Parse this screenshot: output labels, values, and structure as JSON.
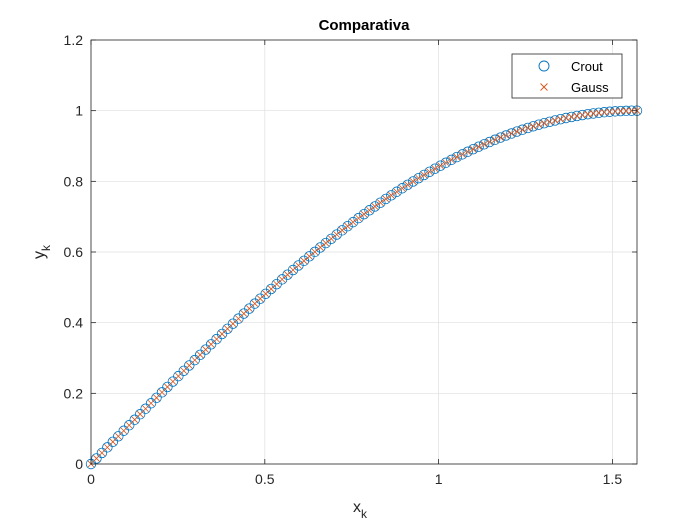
{
  "chart_data": {
    "type": "scatter",
    "title": "Comparativa",
    "xlabel": "x",
    "xlabel_sub": "k",
    "ylabel": "y",
    "ylabel_sub": "k",
    "xlim": [
      0,
      1.5708
    ],
    "ylim": [
      0,
      1.2
    ],
    "xticks": [
      0,
      0.5,
      1,
      1.5
    ],
    "xtick_labels": [
      "0",
      "0.5",
      "1",
      "1.5"
    ],
    "yticks": [
      0,
      0.2,
      0.4,
      0.6,
      0.8,
      1.0,
      1.2
    ],
    "ytick_labels": [
      "0",
      "0.2",
      "0.4",
      "0.6",
      "0.8",
      "1",
      "1.2"
    ],
    "grid": true,
    "legend_position": "top-right",
    "n_points": 101,
    "function": "sin(x)",
    "series": [
      {
        "name": "Crout",
        "marker": "circle",
        "color": "#0072BD"
      },
      {
        "name": "Gauss",
        "marker": "x",
        "color": "#D95319"
      }
    ]
  }
}
